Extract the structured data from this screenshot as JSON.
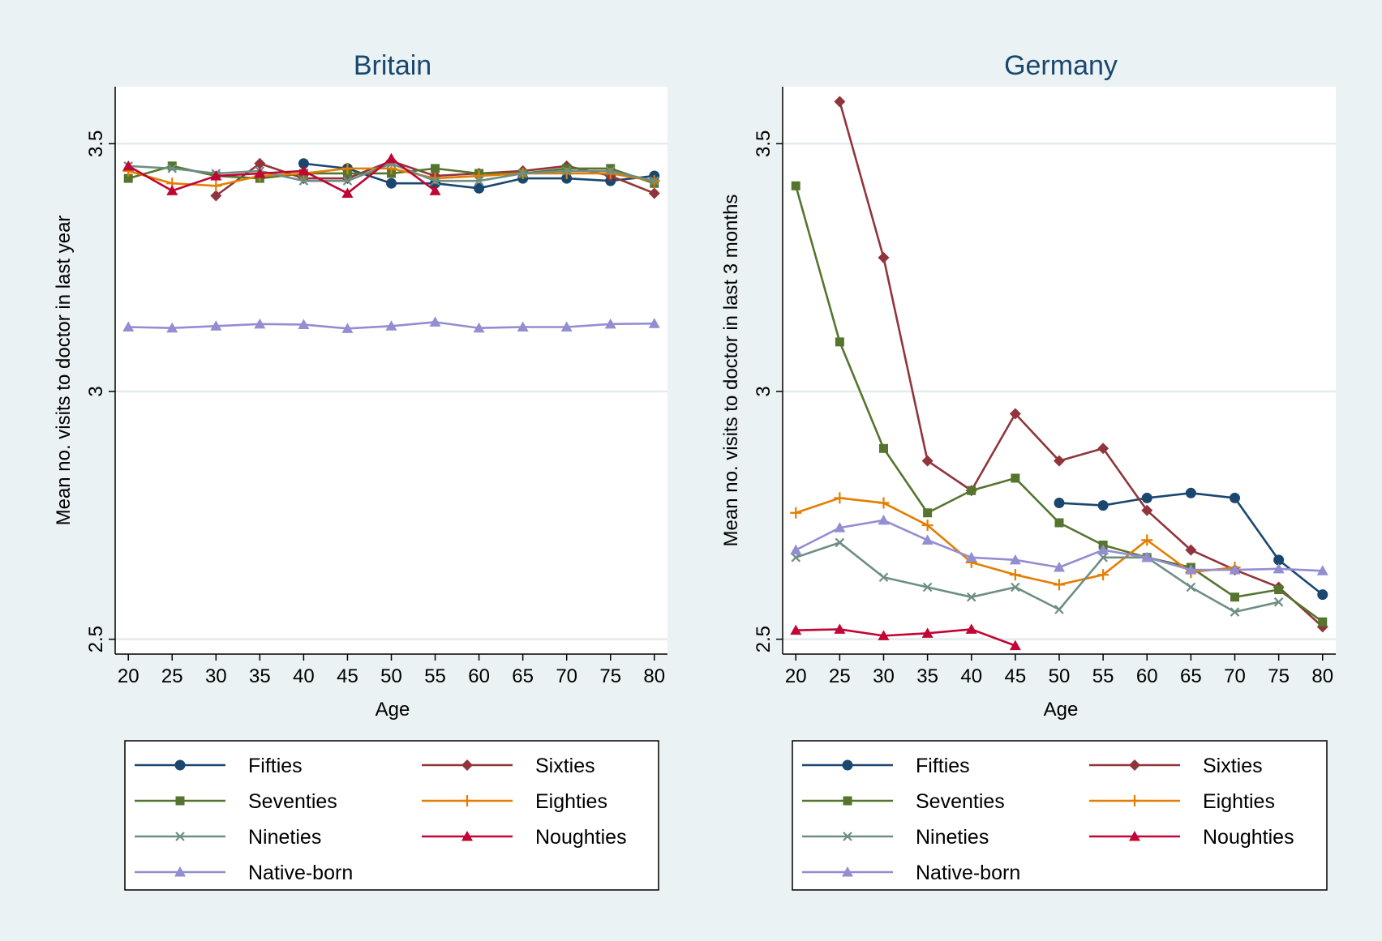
{
  "colors": {
    "background": "#eaf2f3",
    "plot_background": "#ffffff",
    "gridline": "#e3ecec",
    "title": "#1a476f"
  },
  "chart_data": [
    {
      "type": "line",
      "title": "Britain",
      "xlabel": "Age",
      "ylabel": "Mean no. visits to doctor in last year",
      "x": [
        20,
        25,
        30,
        35,
        40,
        45,
        50,
        55,
        60,
        65,
        70,
        75,
        80
      ],
      "xlim": [
        18.5,
        81.5
      ],
      "ylim": [
        2.47,
        3.615
      ],
      "yticks": [
        2.5,
        3,
        3.5
      ],
      "ytick_labels": [
        "2.5",
        "3",
        "3.5"
      ],
      "grid": true,
      "legend_position": "bottom",
      "series": [
        {
          "name": "Fifties",
          "color": "#1a476f",
          "marker": "circle",
          "values": [
            null,
            null,
            null,
            null,
            3.46,
            3.45,
            3.42,
            3.42,
            3.41,
            3.43,
            3.43,
            3.425,
            3.435
          ]
        },
        {
          "name": "Sixties",
          "color": "#90353b",
          "marker": "diamond",
          "values": [
            null,
            null,
            3.395,
            3.46,
            3.43,
            3.43,
            3.465,
            3.435,
            3.44,
            3.445,
            3.455,
            3.435,
            3.4
          ]
        },
        {
          "name": "Seventies",
          "color": "#55752f",
          "marker": "square",
          "values": [
            3.43,
            3.455,
            3.435,
            3.43,
            3.44,
            3.44,
            3.44,
            3.45,
            3.44,
            3.44,
            3.45,
            3.45,
            3.42
          ]
        },
        {
          "name": "Eighties",
          "color": "#e37e00",
          "marker": "plus",
          "values": [
            3.445,
            3.42,
            3.415,
            3.435,
            3.44,
            3.45,
            3.45,
            3.43,
            3.435,
            3.44,
            3.44,
            3.44,
            3.425
          ]
        },
        {
          "name": "Nineties",
          "color": "#6e8e84",
          "marker": "x",
          "values": [
            3.455,
            3.45,
            3.44,
            3.445,
            3.425,
            3.425,
            3.46,
            3.425,
            3.425,
            3.44,
            3.445,
            3.445,
            3.425
          ]
        },
        {
          "name": "Noughties",
          "color": "#c10534",
          "marker": "triangle",
          "values": [
            3.455,
            3.405,
            3.435,
            3.44,
            3.445,
            3.4,
            3.47,
            3.405,
            null,
            null,
            null,
            null,
            null
          ]
        },
        {
          "name": "Native-born",
          "color": "#938dd2",
          "marker": "triangle",
          "values": [
            3.13,
            3.128,
            3.132,
            3.136,
            3.135,
            3.127,
            3.132,
            3.14,
            3.128,
            3.13,
            3.13,
            3.136,
            3.137
          ]
        }
      ]
    },
    {
      "type": "line",
      "title": "Germany",
      "xlabel": "Age",
      "ylabel": "Mean no. visits to doctor in last 3 months",
      "x": [
        20,
        25,
        30,
        35,
        40,
        45,
        50,
        55,
        60,
        65,
        70,
        75,
        80
      ],
      "xlim": [
        18.5,
        81.5
      ],
      "ylim": [
        2.47,
        3.615
      ],
      "yticks": [
        2.5,
        3,
        3.5
      ],
      "ytick_labels": [
        "2.5",
        "3",
        "3.5"
      ],
      "grid": true,
      "legend_position": "bottom",
      "series": [
        {
          "name": "Fifties",
          "color": "#1a476f",
          "marker": "circle",
          "values": [
            null,
            null,
            null,
            null,
            null,
            null,
            2.775,
            2.77,
            2.785,
            2.795,
            2.785,
            2.66,
            2.59
          ]
        },
        {
          "name": "Sixties",
          "color": "#90353b",
          "marker": "diamond",
          "values": [
            null,
            3.585,
            3.27,
            2.86,
            2.8,
            2.955,
            2.86,
            2.885,
            2.76,
            2.68,
            2.64,
            2.605,
            2.525
          ]
        },
        {
          "name": "Seventies",
          "color": "#55752f",
          "marker": "square",
          "values": [
            3.415,
            3.1,
            2.885,
            2.755,
            2.8,
            2.825,
            2.735,
            2.69,
            2.665,
            2.645,
            2.585,
            2.6,
            2.535
          ]
        },
        {
          "name": "Eighties",
          "color": "#e37e00",
          "marker": "plus",
          "values": [
            2.755,
            2.785,
            2.775,
            2.73,
            2.655,
            2.63,
            2.61,
            2.63,
            2.7,
            2.635,
            2.645,
            null,
            null
          ]
        },
        {
          "name": "Nineties",
          "color": "#6e8e84",
          "marker": "x",
          "values": [
            2.665,
            2.695,
            2.625,
            2.605,
            2.585,
            2.605,
            2.56,
            2.665,
            2.665,
            2.605,
            2.555,
            2.575,
            null
          ]
        },
        {
          "name": "Noughties",
          "color": "#c10534",
          "marker": "triangle",
          "values": [
            2.518,
            2.52,
            2.507,
            2.512,
            2.52,
            2.487,
            null,
            null,
            null,
            null,
            null,
            null,
            null
          ]
        },
        {
          "name": "Native-born",
          "color": "#938dd2",
          "marker": "triangle",
          "values": [
            2.68,
            2.725,
            2.74,
            2.7,
            2.665,
            2.66,
            2.645,
            2.68,
            2.665,
            2.64,
            2.64,
            2.642,
            2.638
          ]
        }
      ]
    }
  ]
}
